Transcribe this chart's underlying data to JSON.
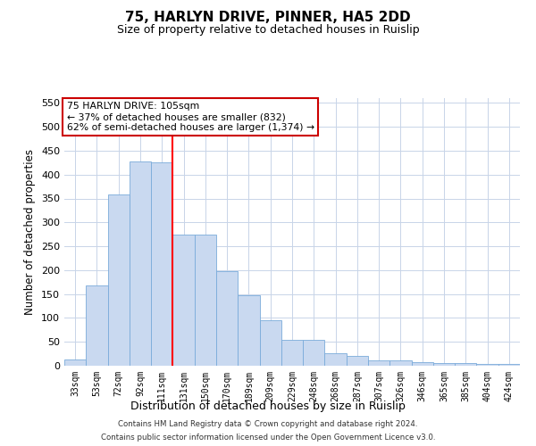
{
  "title": "75, HARLYN DRIVE, PINNER, HA5 2DD",
  "subtitle": "Size of property relative to detached houses in Ruislip",
  "xlabel": "Distribution of detached houses by size in Ruislip",
  "ylabel": "Number of detached properties",
  "categories": [
    "33sqm",
    "53sqm",
    "72sqm",
    "92sqm",
    "111sqm",
    "131sqm",
    "150sqm",
    "170sqm",
    "189sqm",
    "209sqm",
    "229sqm",
    "248sqm",
    "268sqm",
    "287sqm",
    "307sqm",
    "326sqm",
    "346sqm",
    "365sqm",
    "385sqm",
    "404sqm",
    "424sqm"
  ],
  "values": [
    13,
    168,
    358,
    427,
    425,
    275,
    275,
    198,
    148,
    96,
    55,
    55,
    26,
    20,
    11,
    12,
    7,
    5,
    5,
    3,
    4
  ],
  "bar_color": "#c9d9f0",
  "bar_edge_color": "#7aabda",
  "red_line_x": 4.5,
  "ylim": [
    0,
    560
  ],
  "yticks": [
    0,
    50,
    100,
    150,
    200,
    250,
    300,
    350,
    400,
    450,
    500,
    550
  ],
  "annotation_title": "75 HARLYN DRIVE: 105sqm",
  "annotation_line1": "← 37% of detached houses are smaller (832)",
  "annotation_line2": "62% of semi-detached houses are larger (1,374) →",
  "annotation_box_color": "#ffffff",
  "annotation_box_edge_color": "#cc0000",
  "footer_line1": "Contains HM Land Registry data © Crown copyright and database right 2024.",
  "footer_line2": "Contains public sector information licensed under the Open Government Licence v3.0.",
  "bg_color": "#ffffff",
  "grid_color": "#c8d4e8"
}
